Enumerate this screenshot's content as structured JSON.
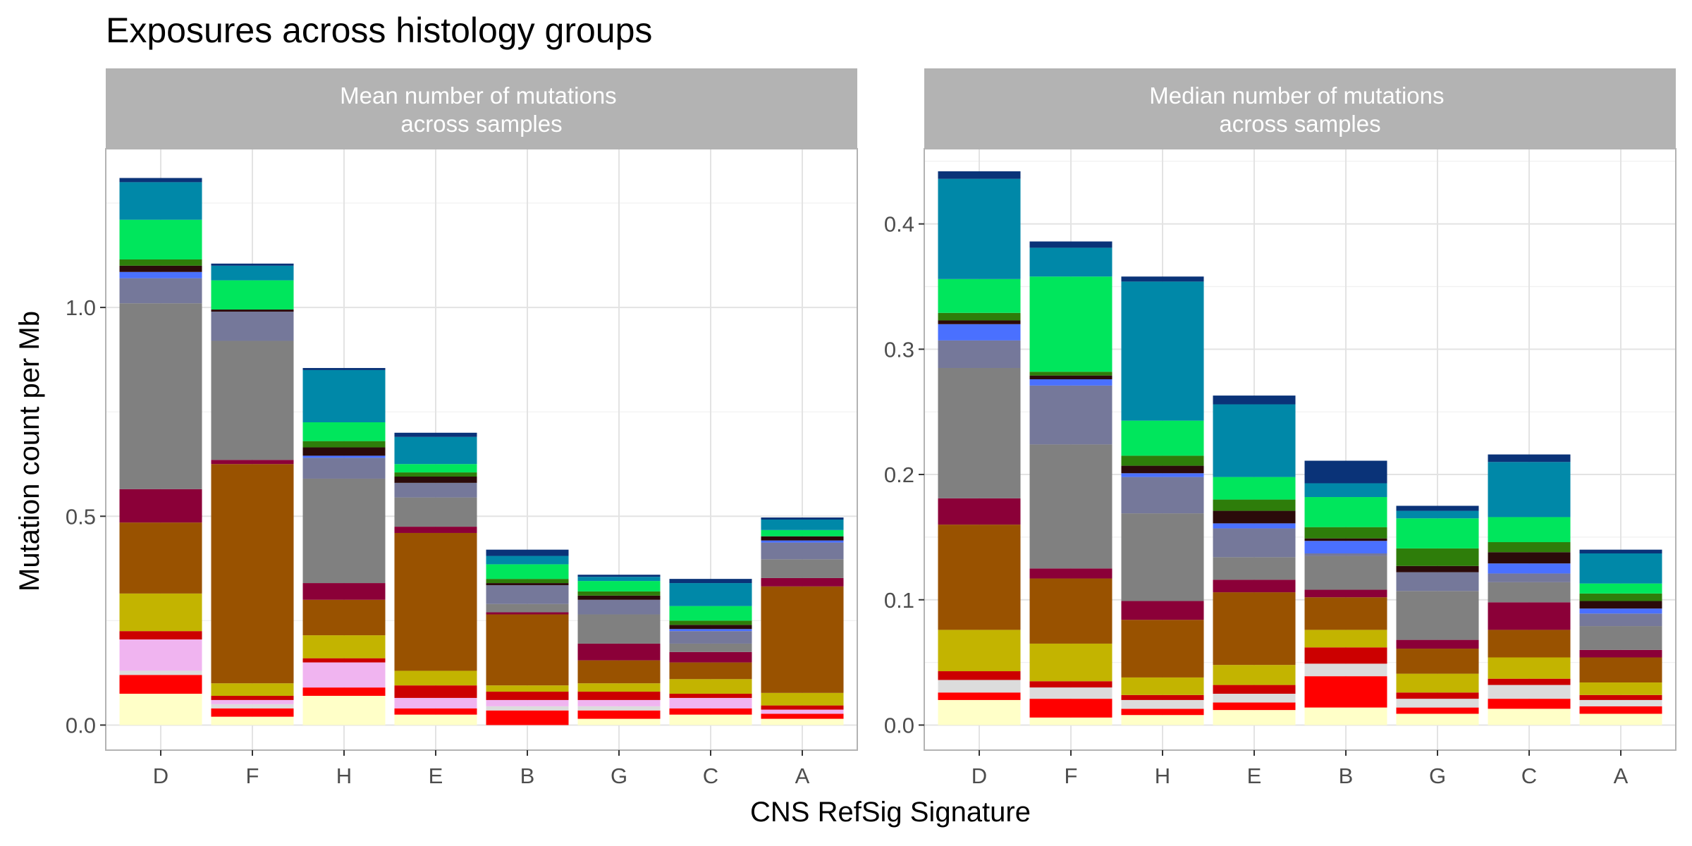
{
  "title": "Exposures across histology groups",
  "xlabel": "CNS RefSig Signature",
  "ylabel": "Mutation count per Mb",
  "chart_data": [
    {
      "type": "bar",
      "stacked": true,
      "panel_title": "Mean number of mutations\nacross samples",
      "categories": [
        "D",
        "F",
        "H",
        "E",
        "B",
        "G",
        "C",
        "A"
      ],
      "ylim": [
        -0.06,
        1.38
      ],
      "yticks": [
        0.0,
        0.5,
        1.0
      ],
      "ytick_labels": [
        "0.0",
        "0.5",
        "1.0"
      ],
      "grid": true,
      "series": [
        {
          "color": "#FFFFC8",
          "values": [
            0.075,
            0.02,
            0.07,
            0.025,
            0.0,
            0.015,
            0.025,
            0.015
          ]
        },
        {
          "color": "#FF0000",
          "values": [
            0.045,
            0.02,
            0.02,
            0.015,
            0.035,
            0.02,
            0.015,
            0.012
          ]
        },
        {
          "color": "#DCDCDC",
          "values": [
            0.01,
            0.01,
            0.0,
            0.0,
            0.01,
            0.01,
            0.0,
            0.0
          ]
        },
        {
          "color": "#F0B4F0",
          "values": [
            0.075,
            0.01,
            0.06,
            0.025,
            0.015,
            0.015,
            0.025,
            0.01
          ]
        },
        {
          "color": "#CC0000",
          "values": [
            0.02,
            0.01,
            0.01,
            0.03,
            0.02,
            0.02,
            0.01,
            0.01
          ]
        },
        {
          "color": "#C3B400",
          "values": [
            0.09,
            0.03,
            0.055,
            0.035,
            0.015,
            0.02,
            0.035,
            0.03
          ]
        },
        {
          "color": "#995200",
          "values": [
            0.17,
            0.525,
            0.085,
            0.33,
            0.17,
            0.055,
            0.04,
            0.255
          ]
        },
        {
          "color": "#8B0038",
          "values": [
            0.08,
            0.01,
            0.04,
            0.015,
            0.005,
            0.04,
            0.025,
            0.02
          ]
        },
        {
          "color": "#808080",
          "values": [
            0.445,
            0.285,
            0.25,
            0.07,
            0.02,
            0.07,
            0.02,
            0.045
          ]
        },
        {
          "color": "#75789A",
          "values": [
            0.06,
            0.07,
            0.05,
            0.035,
            0.045,
            0.035,
            0.03,
            0.04
          ]
        },
        {
          "color": "#4A70FF",
          "values": [
            0.015,
            0.0,
            0.005,
            0.0,
            0.0,
            0.0,
            0.005,
            0.005
          ]
        },
        {
          "color": "#2B0A0A",
          "values": [
            0.015,
            0.005,
            0.02,
            0.015,
            0.005,
            0.01,
            0.01,
            0.01
          ]
        },
        {
          "color": "#2E7D0A",
          "values": [
            0.015,
            0.0,
            0.015,
            0.01,
            0.01,
            0.01,
            0.01,
            0.0
          ]
        },
        {
          "color": "#00E65C",
          "values": [
            0.095,
            0.07,
            0.045,
            0.02,
            0.035,
            0.025,
            0.035,
            0.015
          ]
        },
        {
          "color": "#0088A8",
          "values": [
            0.09,
            0.035,
            0.125,
            0.065,
            0.02,
            0.01,
            0.055,
            0.025
          ]
        },
        {
          "color": "#0A3378",
          "values": [
            0.01,
            0.005,
            0.005,
            0.01,
            0.015,
            0.005,
            0.01,
            0.005
          ]
        }
      ]
    },
    {
      "type": "bar",
      "stacked": true,
      "panel_title": "Median number of mutations\nacross samples",
      "categories": [
        "D",
        "F",
        "H",
        "E",
        "B",
        "G",
        "C",
        "A"
      ],
      "ylim": [
        -0.02,
        0.46
      ],
      "yticks": [
        0.0,
        0.1,
        0.2,
        0.3,
        0.4
      ],
      "ytick_labels": [
        "0.0",
        "0.1",
        "0.2",
        "0.3",
        "0.4"
      ],
      "grid": true,
      "series": [
        {
          "color": "#FFFFC8",
          "values": [
            0.02,
            0.006,
            0.008,
            0.012,
            0.014,
            0.009,
            0.013,
            0.009
          ]
        },
        {
          "color": "#FF0000",
          "values": [
            0.006,
            0.015,
            0.005,
            0.006,
            0.025,
            0.005,
            0.008,
            0.006
          ]
        },
        {
          "color": "#DCDCDC",
          "values": [
            0.01,
            0.009,
            0.007,
            0.007,
            0.01,
            0.007,
            0.011,
            0.005
          ]
        },
        {
          "color": "#F0B4F0",
          "values": [
            0.0,
            0.0,
            0.0,
            0.0,
            0.0,
            0.0,
            0.0,
            0.0
          ]
        },
        {
          "color": "#CC0000",
          "values": [
            0.007,
            0.005,
            0.004,
            0.007,
            0.013,
            0.005,
            0.005,
            0.004
          ]
        },
        {
          "color": "#C3B400",
          "values": [
            0.033,
            0.03,
            0.014,
            0.016,
            0.014,
            0.015,
            0.017,
            0.01
          ]
        },
        {
          "color": "#995200",
          "values": [
            0.084,
            0.052,
            0.046,
            0.058,
            0.026,
            0.02,
            0.022,
            0.02
          ]
        },
        {
          "color": "#8B0038",
          "values": [
            0.021,
            0.008,
            0.015,
            0.01,
            0.006,
            0.007,
            0.022,
            0.006
          ]
        },
        {
          "color": "#808080",
          "values": [
            0.104,
            0.099,
            0.07,
            0.018,
            0.027,
            0.039,
            0.016,
            0.019
          ]
        },
        {
          "color": "#75789A",
          "values": [
            0.022,
            0.047,
            0.029,
            0.023,
            0.002,
            0.015,
            0.007,
            0.01
          ]
        },
        {
          "color": "#4A70FF",
          "values": [
            0.013,
            0.005,
            0.003,
            0.004,
            0.01,
            0.0,
            0.008,
            0.004
          ]
        },
        {
          "color": "#2B0A0A",
          "values": [
            0.003,
            0.003,
            0.006,
            0.01,
            0.002,
            0.005,
            0.009,
            0.006
          ]
        },
        {
          "color": "#2E7D0A",
          "values": [
            0.006,
            0.003,
            0.008,
            0.009,
            0.009,
            0.014,
            0.008,
            0.006
          ]
        },
        {
          "color": "#00E65C",
          "values": [
            0.027,
            0.076,
            0.028,
            0.018,
            0.024,
            0.024,
            0.02,
            0.008
          ]
        },
        {
          "color": "#0088A8",
          "values": [
            0.08,
            0.023,
            0.111,
            0.058,
            0.011,
            0.006,
            0.044,
            0.024
          ]
        },
        {
          "color": "#0A3378",
          "values": [
            0.006,
            0.005,
            0.004,
            0.007,
            0.018,
            0.004,
            0.006,
            0.003
          ]
        }
      ]
    }
  ]
}
